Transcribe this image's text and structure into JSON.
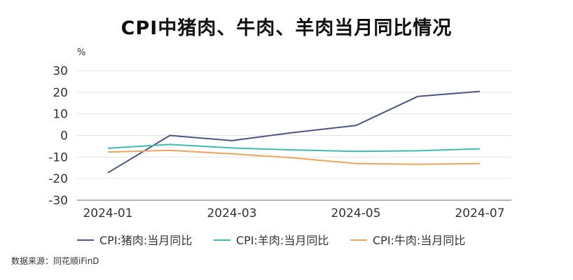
{
  "chart_data": {
    "type": "line",
    "title": "CPI中猪肉、牛肉、羊肉当月同比情况",
    "ylabel": "%",
    "xlabel": "",
    "ylim": [
      -30,
      30
    ],
    "yticks": [
      -30,
      -20,
      -10,
      0,
      10,
      20,
      30
    ],
    "x": [
      "2024-01",
      "2024-02",
      "2024-03",
      "2024-04",
      "2024-05",
      "2024-06",
      "2024-07"
    ],
    "xtick_labels": [
      "2024-01",
      "2024-03",
      "2024-05",
      "2024-07"
    ],
    "series": [
      {
        "name": "CPI:猪肉:当月同比",
        "color": "#4a5685",
        "values": [
          -17.3,
          0.0,
          -2.4,
          1.4,
          4.6,
          18.1,
          20.4
        ]
      },
      {
        "name": "CPI:羊肉:当月同比",
        "color": "#3dbdad",
        "values": [
          -5.9,
          -4.2,
          -5.8,
          -6.7,
          -7.4,
          -7.1,
          -6.2
        ]
      },
      {
        "name": "CPI:牛肉:当月同比",
        "color": "#f0a55a",
        "values": [
          -7.7,
          -6.9,
          -8.5,
          -10.4,
          -13.0,
          -13.4,
          -13.0
        ]
      }
    ],
    "legend_position": "bottom",
    "grid": true
  },
  "source": "数据来源：同花顺iFinD"
}
